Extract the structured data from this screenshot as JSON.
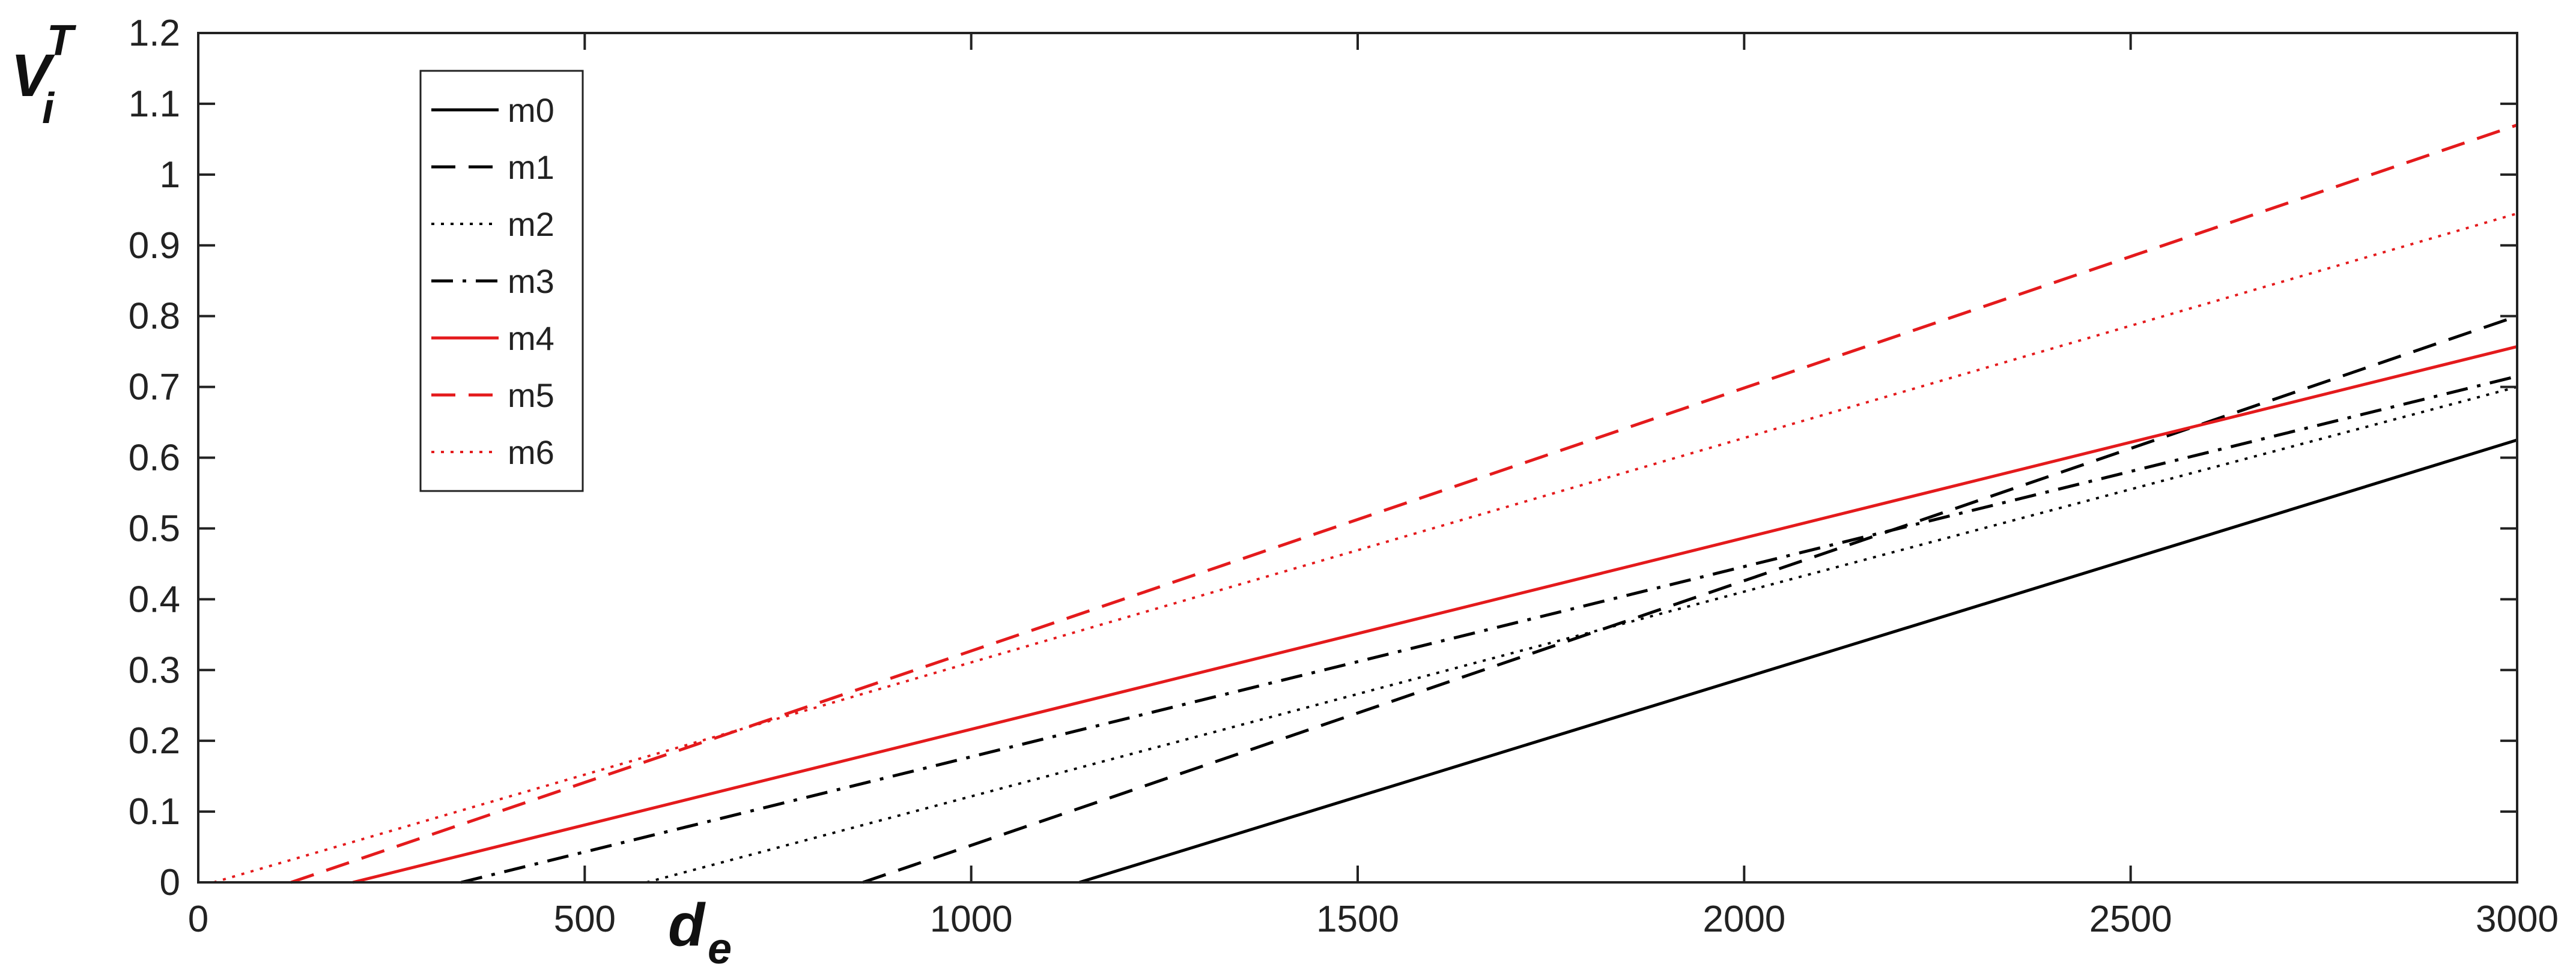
{
  "chart_data": {
    "type": "line",
    "xlabel": "d",
    "xlabel_sub": "e",
    "ylabel": "V",
    "ylabel_sup": "T",
    "ylabel_sub": "i",
    "xlim": [
      0,
      3000
    ],
    "ylim": [
      0,
      1.2
    ],
    "xticks": [
      0,
      500,
      1000,
      1500,
      2000,
      2500,
      3000
    ],
    "xtick_labels": [
      "0",
      "500",
      "1000",
      "1500",
      "2000",
      "2500",
      "3000"
    ],
    "yticks": [
      0,
      0.1,
      0.2,
      0.3,
      0.4,
      0.5,
      0.6,
      0.7,
      0.8,
      0.9,
      1,
      1.1,
      1.2
    ],
    "ytick_labels": [
      "0",
      "0.1",
      "0.2",
      "0.3",
      "0.4",
      "0.5",
      "0.6",
      "0.7",
      "0.8",
      "0.9",
      "1",
      "1.1",
      "1.2"
    ],
    "grid": false,
    "legend_position": "top-left",
    "series": [
      {
        "name": "m0",
        "color": "#000000",
        "dash": "solid",
        "x": [
          1140,
          3000
        ],
        "y": [
          0,
          0.625
        ]
      },
      {
        "name": "m1",
        "color": "#000000",
        "dash": "dashed",
        "x": [
          860,
          3000
        ],
        "y": [
          0,
          0.8
        ]
      },
      {
        "name": "m2",
        "color": "#000000",
        "dash": "dotted",
        "x": [
          580,
          3000
        ],
        "y": [
          0,
          0.7
        ]
      },
      {
        "name": "m3",
        "color": "#000000",
        "dash": "dashdot",
        "x": [
          340,
          3000
        ],
        "y": [
          0,
          0.715
        ]
      },
      {
        "name": "m4",
        "color": "#e41a1c",
        "dash": "solid",
        "x": [
          200,
          3000
        ],
        "y": [
          0,
          0.757
        ]
      },
      {
        "name": "m5",
        "color": "#e41a1c",
        "dash": "dashed",
        "x": [
          120,
          3000
        ],
        "y": [
          0,
          1.07
        ]
      },
      {
        "name": "m6",
        "color": "#e41a1c",
        "dash": "dotted",
        "x": [
          20,
          3000
        ],
        "y": [
          0,
          0.945
        ]
      }
    ]
  }
}
